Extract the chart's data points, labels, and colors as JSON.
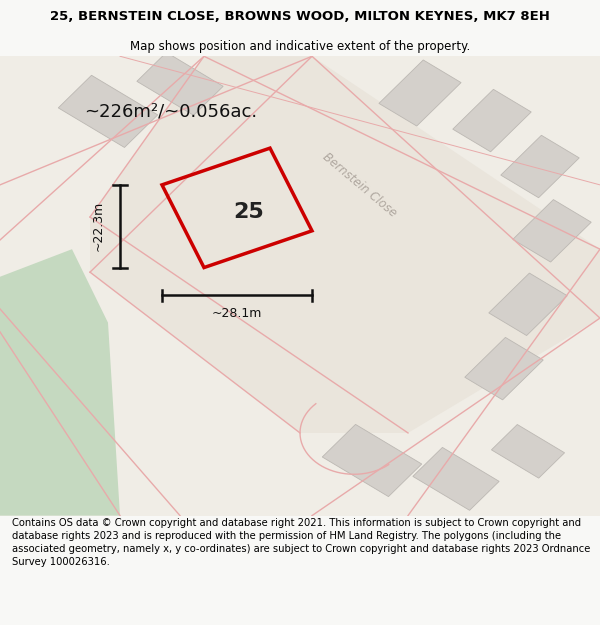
{
  "title_line1": "25, BERNSTEIN CLOSE, BROWNS WOOD, MILTON KEYNES, MK7 8EH",
  "title_line2": "Map shows position and indicative extent of the property.",
  "area_text": "~226m²/~0.056ac.",
  "width_label": "~28.1m",
  "height_label": "~22.3m",
  "property_number": "25",
  "street_label": "Bernstein Close",
  "footer_text": "Contains OS data © Crown copyright and database right 2021. This information is subject to Crown copyright and database rights 2023 and is reproduced with the permission of HM Land Registry. The polygons (including the associated geometry, namely x, y co-ordinates) are subject to Crown copyright and database rights 2023 Ordnance Survey 100026316.",
  "bg_color": "#f8f8f6",
  "map_bg": "#f0ede6",
  "green_color": "#c5d9c0",
  "building_color": "#d4d0cb",
  "building_edge": "#bcb8b3",
  "road_fill": "#e8e2da",
  "road_line": "#e8aaaa",
  "plot_color": "#cc0000",
  "dim_color": "#111111",
  "street_color": "#b0a8a0",
  "title_fontsize": 9.5,
  "subtitle_fontsize": 8.5,
  "footer_fontsize": 7.2,
  "area_fontsize": 13,
  "dim_fontsize": 9,
  "number_fontsize": 16,
  "street_fontsize": 8.5
}
